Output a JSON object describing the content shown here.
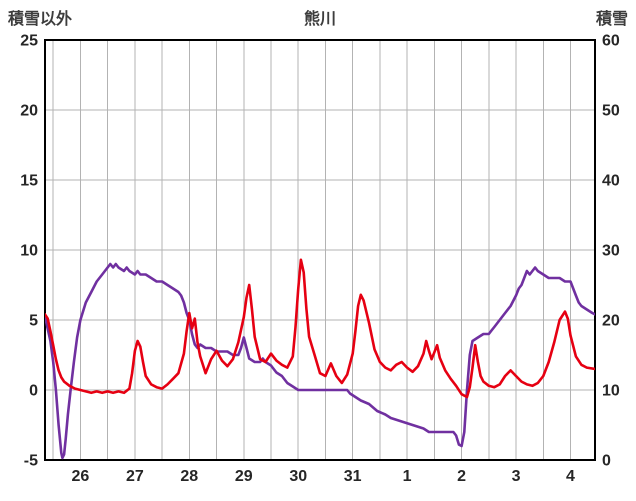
{
  "chart_data": {
    "type": "line",
    "title": "熊川",
    "left_axis": {
      "label": "積雪以外",
      "min": -5,
      "max": 25,
      "ticks": [
        25,
        20,
        15,
        10,
        5,
        0,
        -5
      ]
    },
    "right_axis": {
      "label": "積雪",
      "min": 0,
      "max": 60,
      "ticks": [
        60,
        50,
        40,
        30,
        20,
        10,
        0
      ]
    },
    "x_axis": {
      "labels": [
        "26",
        "27",
        "28",
        "29",
        "30",
        "31",
        "1",
        "2",
        "3",
        "4"
      ],
      "label_positions": [
        0,
        1,
        2,
        3,
        4,
        5,
        6,
        7,
        8,
        9
      ],
      "min": -0.65,
      "max": 9.45,
      "grid_min": -0.5,
      "grid_max": 9.0,
      "grid_step": 0.5
    },
    "style": {
      "grid_color": "#b3b3b3",
      "border_color": "#000000",
      "background": "#ffffff"
    },
    "series": [
      {
        "name": "purple-line-right-axis",
        "axis": "right",
        "color": "#7030a0",
        "points": [
          [
            -0.65,
            20.5
          ],
          [
            -0.55,
            17
          ],
          [
            -0.5,
            14
          ],
          [
            -0.45,
            10
          ],
          [
            -0.4,
            5
          ],
          [
            -0.35,
            1
          ],
          [
            -0.33,
            0.3
          ],
          [
            -0.3,
            0.8
          ],
          [
            -0.27,
            3
          ],
          [
            -0.23,
            6.5
          ],
          [
            -0.18,
            10
          ],
          [
            -0.12,
            14
          ],
          [
            -0.06,
            17.5
          ],
          [
            0,
            20
          ],
          [
            0.1,
            22.5
          ],
          [
            0.2,
            24
          ],
          [
            0.3,
            25.5
          ],
          [
            0.4,
            26.5
          ],
          [
            0.5,
            27.5
          ],
          [
            0.55,
            28
          ],
          [
            0.6,
            27.5
          ],
          [
            0.65,
            28
          ],
          [
            0.7,
            27.5
          ],
          [
            0.8,
            27
          ],
          [
            0.85,
            27.5
          ],
          [
            0.9,
            27
          ],
          [
            1.0,
            26.5
          ],
          [
            1.05,
            27
          ],
          [
            1.1,
            26.5
          ],
          [
            1.2,
            26.5
          ],
          [
            1.3,
            26
          ],
          [
            1.4,
            25.5
          ],
          [
            1.5,
            25.5
          ],
          [
            1.6,
            25
          ],
          [
            1.7,
            24.5
          ],
          [
            1.8,
            24
          ],
          [
            1.85,
            23.5
          ],
          [
            1.9,
            22.5
          ],
          [
            1.95,
            21
          ],
          [
            2.0,
            20
          ],
          [
            2.05,
            18
          ],
          [
            2.1,
            16.5
          ],
          [
            2.15,
            16
          ],
          [
            2.2,
            16.5
          ],
          [
            2.3,
            16
          ],
          [
            2.4,
            16
          ],
          [
            2.5,
            15.5
          ],
          [
            2.6,
            15.5
          ],
          [
            2.7,
            15.5
          ],
          [
            2.8,
            15
          ],
          [
            2.9,
            15
          ],
          [
            2.95,
            16
          ],
          [
            3.0,
            17.5
          ],
          [
            3.05,
            16
          ],
          [
            3.1,
            14.5
          ],
          [
            3.2,
            14
          ],
          [
            3.3,
            14
          ],
          [
            3.35,
            14.5
          ],
          [
            3.4,
            14
          ],
          [
            3.5,
            13.5
          ],
          [
            3.55,
            13
          ],
          [
            3.6,
            12.5
          ],
          [
            3.7,
            12
          ],
          [
            3.75,
            11.5
          ],
          [
            3.8,
            11
          ],
          [
            3.9,
            10.5
          ],
          [
            4.0,
            10
          ],
          [
            4.2,
            10
          ],
          [
            4.4,
            10
          ],
          [
            4.6,
            10
          ],
          [
            4.8,
            10
          ],
          [
            4.9,
            10
          ],
          [
            4.95,
            9.5
          ],
          [
            5.05,
            9
          ],
          [
            5.15,
            8.5
          ],
          [
            5.3,
            8
          ],
          [
            5.45,
            7
          ],
          [
            5.6,
            6.5
          ],
          [
            5.7,
            6
          ],
          [
            5.9,
            5.5
          ],
          [
            6.1,
            5
          ],
          [
            6.3,
            4.5
          ],
          [
            6.4,
            4
          ],
          [
            6.6,
            4
          ],
          [
            6.8,
            4
          ],
          [
            6.85,
            4
          ],
          [
            6.9,
            3.5
          ],
          [
            6.95,
            2.2
          ],
          [
            7.0,
            2
          ],
          [
            7.05,
            4
          ],
          [
            7.1,
            10
          ],
          [
            7.15,
            15
          ],
          [
            7.2,
            17
          ],
          [
            7.3,
            17.5
          ],
          [
            7.4,
            18
          ],
          [
            7.5,
            18
          ],
          [
            7.55,
            18.5
          ],
          [
            7.6,
            19
          ],
          [
            7.7,
            20
          ],
          [
            7.8,
            21
          ],
          [
            7.9,
            22
          ],
          [
            8.0,
            23.5
          ],
          [
            8.05,
            24.5
          ],
          [
            8.1,
            25
          ],
          [
            8.15,
            26
          ],
          [
            8.2,
            27
          ],
          [
            8.25,
            26.5
          ],
          [
            8.3,
            27
          ],
          [
            8.35,
            27.5
          ],
          [
            8.4,
            27
          ],
          [
            8.5,
            26.5
          ],
          [
            8.6,
            26
          ],
          [
            8.7,
            26
          ],
          [
            8.8,
            26
          ],
          [
            8.9,
            25.5
          ],
          [
            9.0,
            25.5
          ],
          [
            9.05,
            24.5
          ],
          [
            9.1,
            23.5
          ],
          [
            9.15,
            22.5
          ],
          [
            9.2,
            22
          ],
          [
            9.3,
            21.5
          ],
          [
            9.4,
            21
          ],
          [
            9.45,
            20.8
          ]
        ]
      },
      {
        "name": "red-line-left-axis",
        "axis": "left",
        "color": "#e60012",
        "points": [
          [
            -0.65,
            5.4
          ],
          [
            -0.6,
            5.1
          ],
          [
            -0.55,
            4.2
          ],
          [
            -0.5,
            3.2
          ],
          [
            -0.45,
            2.2
          ],
          [
            -0.4,
            1.4
          ],
          [
            -0.35,
            0.9
          ],
          [
            -0.3,
            0.6
          ],
          [
            -0.2,
            0.3
          ],
          [
            -0.1,
            0.1
          ],
          [
            0,
            0
          ],
          [
            0.1,
            -0.1
          ],
          [
            0.2,
            -0.2
          ],
          [
            0.3,
            -0.1
          ],
          [
            0.4,
            -0.2
          ],
          [
            0.5,
            -0.1
          ],
          [
            0.6,
            -0.2
          ],
          [
            0.7,
            -0.1
          ],
          [
            0.8,
            -0.2
          ],
          [
            0.9,
            0.1
          ],
          [
            0.95,
            1.2
          ],
          [
            1.0,
            2.8
          ],
          [
            1.05,
            3.5
          ],
          [
            1.1,
            3.1
          ],
          [
            1.15,
            2.0
          ],
          [
            1.2,
            1.0
          ],
          [
            1.3,
            0.4
          ],
          [
            1.4,
            0.2
          ],
          [
            1.5,
            0.1
          ],
          [
            1.6,
            0.4
          ],
          [
            1.7,
            0.8
          ],
          [
            1.8,
            1.2
          ],
          [
            1.9,
            2.6
          ],
          [
            1.95,
            4.2
          ],
          [
            2.0,
            5.5
          ],
          [
            2.05,
            4.4
          ],
          [
            2.1,
            5.1
          ],
          [
            2.15,
            3.4
          ],
          [
            2.2,
            2.4
          ],
          [
            2.3,
            1.2
          ],
          [
            2.4,
            2.2
          ],
          [
            2.5,
            2.8
          ],
          [
            2.6,
            2.1
          ],
          [
            2.7,
            1.7
          ],
          [
            2.8,
            2.2
          ],
          [
            2.9,
            3.4
          ],
          [
            3.0,
            5.2
          ],
          [
            3.05,
            6.6
          ],
          [
            3.1,
            7.5
          ],
          [
            3.15,
            5.8
          ],
          [
            3.2,
            3.8
          ],
          [
            3.3,
            2.2
          ],
          [
            3.4,
            2.0
          ],
          [
            3.5,
            2.6
          ],
          [
            3.6,
            2.1
          ],
          [
            3.7,
            1.8
          ],
          [
            3.8,
            1.6
          ],
          [
            3.9,
            2.4
          ],
          [
            3.95,
            4.5
          ],
          [
            4.0,
            7.2
          ],
          [
            4.05,
            9.3
          ],
          [
            4.1,
            8.4
          ],
          [
            4.15,
            5.8
          ],
          [
            4.2,
            3.8
          ],
          [
            4.3,
            2.5
          ],
          [
            4.4,
            1.2
          ],
          [
            4.5,
            1.0
          ],
          [
            4.6,
            1.9
          ],
          [
            4.7,
            1.0
          ],
          [
            4.8,
            0.5
          ],
          [
            4.9,
            1.1
          ],
          [
            5.0,
            2.6
          ],
          [
            5.05,
            4.2
          ],
          [
            5.1,
            6.0
          ],
          [
            5.15,
            6.8
          ],
          [
            5.2,
            6.4
          ],
          [
            5.3,
            4.8
          ],
          [
            5.4,
            2.9
          ],
          [
            5.5,
            2.0
          ],
          [
            5.6,
            1.6
          ],
          [
            5.7,
            1.4
          ],
          [
            5.8,
            1.8
          ],
          [
            5.9,
            2.0
          ],
          [
            6.0,
            1.6
          ],
          [
            6.1,
            1.3
          ],
          [
            6.2,
            1.7
          ],
          [
            6.3,
            2.6
          ],
          [
            6.35,
            3.5
          ],
          [
            6.4,
            2.8
          ],
          [
            6.45,
            2.2
          ],
          [
            6.5,
            2.7
          ],
          [
            6.55,
            3.2
          ],
          [
            6.6,
            2.3
          ],
          [
            6.7,
            1.4
          ],
          [
            6.8,
            0.8
          ],
          [
            6.9,
            0.3
          ],
          [
            7.0,
            -0.3
          ],
          [
            7.1,
            -0.5
          ],
          [
            7.15,
            0.2
          ],
          [
            7.2,
            1.6
          ],
          [
            7.25,
            3.2
          ],
          [
            7.3,
            2.0
          ],
          [
            7.35,
            1.0
          ],
          [
            7.4,
            0.6
          ],
          [
            7.5,
            0.3
          ],
          [
            7.6,
            0.2
          ],
          [
            7.7,
            0.4
          ],
          [
            7.8,
            1.0
          ],
          [
            7.9,
            1.4
          ],
          [
            8.0,
            1.0
          ],
          [
            8.1,
            0.6
          ],
          [
            8.2,
            0.4
          ],
          [
            8.3,
            0.3
          ],
          [
            8.4,
            0.5
          ],
          [
            8.5,
            1.0
          ],
          [
            8.6,
            2.0
          ],
          [
            8.7,
            3.4
          ],
          [
            8.8,
            5.0
          ],
          [
            8.9,
            5.6
          ],
          [
            8.95,
            5.1
          ],
          [
            9.0,
            3.9
          ],
          [
            9.1,
            2.4
          ],
          [
            9.2,
            1.8
          ],
          [
            9.3,
            1.6
          ],
          [
            9.45,
            1.5
          ]
        ]
      }
    ]
  }
}
